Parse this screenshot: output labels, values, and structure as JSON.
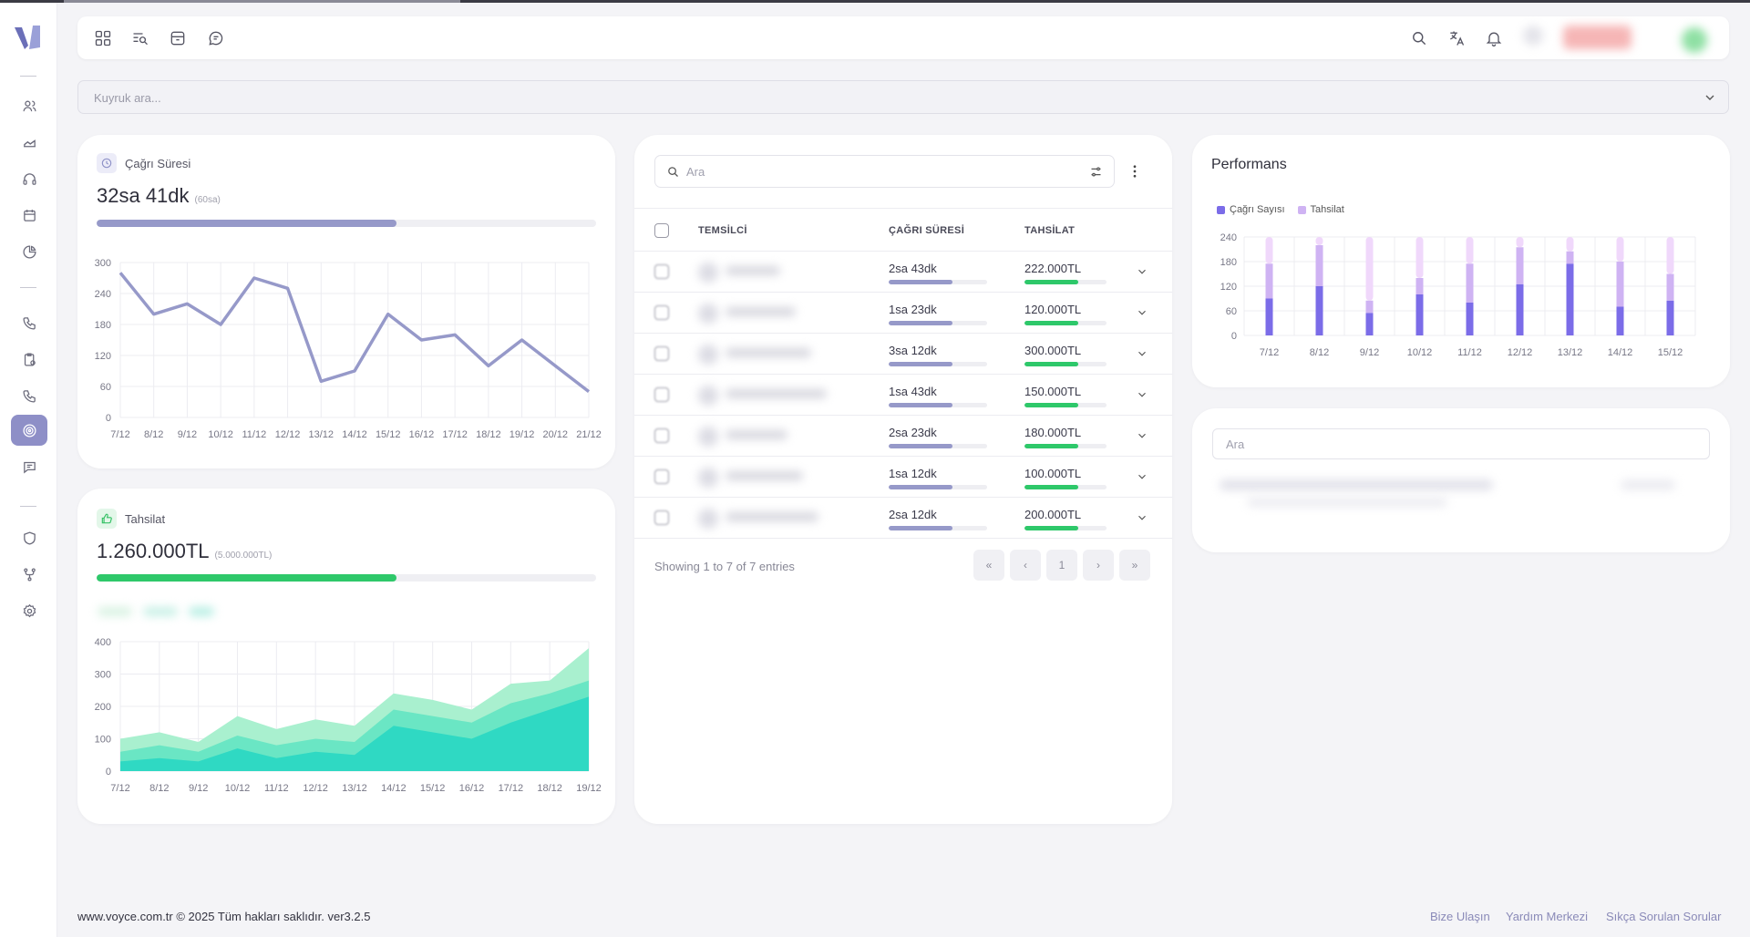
{
  "header": {
    "icons": [
      "apps-icon",
      "list-search-icon",
      "archive-icon",
      "chat-icon"
    ],
    "right_icons": [
      "search-icon",
      "translate-icon",
      "bell-icon"
    ]
  },
  "queue": {
    "placeholder": "Kuyruk ara..."
  },
  "call_card": {
    "title": "Çağrı Süresi",
    "value": "32sa 41dk",
    "target": "(60sa)",
    "progress": 0.6,
    "chart_data": {
      "type": "line",
      "x": [
        "7/12",
        "8/12",
        "9/12",
        "10/12",
        "11/12",
        "12/12",
        "13/12",
        "14/12",
        "15/12",
        "16/12",
        "17/12",
        "18/12",
        "19/12",
        "20/12",
        "21/12"
      ],
      "values": [
        280,
        200,
        220,
        180,
        270,
        250,
        70,
        90,
        200,
        150,
        160,
        100,
        150,
        100,
        50
      ],
      "ylim": [
        0,
        300
      ],
      "yticks": [
        "0",
        "60",
        "120",
        "180",
        "240",
        "300"
      ],
      "color": "#9699c9"
    }
  },
  "collection_card": {
    "title": "Tahsilat",
    "value": "1.260.000TL",
    "target": "(5.000.000TL)",
    "progress": 0.6,
    "chart_data": {
      "type": "area",
      "x": [
        "7/12",
        "8/12",
        "9/12",
        "10/12",
        "11/12",
        "12/12",
        "13/12",
        "14/12",
        "15/12",
        "16/12",
        "17/12",
        "18/12",
        "19/12"
      ],
      "ylim": [
        0,
        400
      ],
      "yticks": [
        "0",
        "100",
        "200",
        "300",
        "400"
      ],
      "series": [
        {
          "values": [
            30,
            40,
            30,
            70,
            40,
            60,
            50,
            140,
            120,
            100,
            150,
            190,
            230
          ],
          "color": "#2fd9c3"
        },
        {
          "values": [
            60,
            80,
            60,
            110,
            80,
            100,
            90,
            190,
            170,
            150,
            210,
            240,
            280
          ],
          "color": "#6ae6c4"
        },
        {
          "values": [
            100,
            120,
            90,
            170,
            130,
            160,
            140,
            240,
            220,
            190,
            270,
            280,
            380
          ],
          "color": "#a9f0cf"
        }
      ]
    }
  },
  "table_card": {
    "search_placeholder": "Ara",
    "columns": [
      "TEMSİLCİ",
      "ÇAĞRI SÜRESİ",
      "TAHSİLAT"
    ],
    "rows": [
      {
        "duration": "2sa 43dk",
        "dur_frac": 0.65,
        "amount": "222.000TL",
        "amt_frac": 0.65
      },
      {
        "duration": "1sa 23dk",
        "dur_frac": 0.65,
        "amount": "120.000TL",
        "amt_frac": 0.65
      },
      {
        "duration": "3sa 12dk",
        "dur_frac": 0.65,
        "amount": "300.000TL",
        "amt_frac": 0.65
      },
      {
        "duration": "1sa 43dk",
        "dur_frac": 0.65,
        "amount": "150.000TL",
        "amt_frac": 0.65
      },
      {
        "duration": "2sa 23dk",
        "dur_frac": 0.65,
        "amount": "180.000TL",
        "amt_frac": 0.65
      },
      {
        "duration": "1sa 12dk",
        "dur_frac": 0.65,
        "amount": "100.000TL",
        "amt_frac": 0.65
      },
      {
        "duration": "2sa 12dk",
        "dur_frac": 0.65,
        "amount": "200.000TL",
        "amt_frac": 0.65
      }
    ],
    "entries_text": "Showing 1 to 7 of 7 entries",
    "pagination": [
      "«",
      "‹",
      "1",
      "›",
      "»"
    ]
  },
  "performance_card": {
    "title": "Performans",
    "chart_data": {
      "type": "bar",
      "stacked": true,
      "categories": [
        "7/12",
        "8/12",
        "9/12",
        "10/12",
        "11/12",
        "12/12",
        "13/12",
        "14/12",
        "15/12"
      ],
      "ylim": [
        0,
        240
      ],
      "yticks": [
        "0",
        "60",
        "120",
        "180",
        "240"
      ],
      "series": [
        {
          "name": "Çağrı Sayısı",
          "values": [
            90,
            120,
            55,
            100,
            80,
            125,
            175,
            70,
            85
          ],
          "color": "#7b6ce8"
        },
        {
          "name": "Tahsilat",
          "values": [
            85,
            100,
            30,
            40,
            95,
            90,
            30,
            110,
            65
          ],
          "color": "#cfb3f3"
        },
        {
          "values": [
            65,
            20,
            155,
            100,
            65,
            25,
            35,
            60,
            90
          ],
          "color": "#f0d8fb"
        }
      ]
    }
  },
  "side_search": {
    "placeholder": "Ara"
  },
  "footer": {
    "copyright": "www.voyce.com.tr © 2025 Tüm hakları saklıdır. ver3.2.5",
    "links": [
      "Bize Ulaşın",
      "Yardım Merkezi",
      "Sıkça Sorulan Sorular"
    ]
  }
}
